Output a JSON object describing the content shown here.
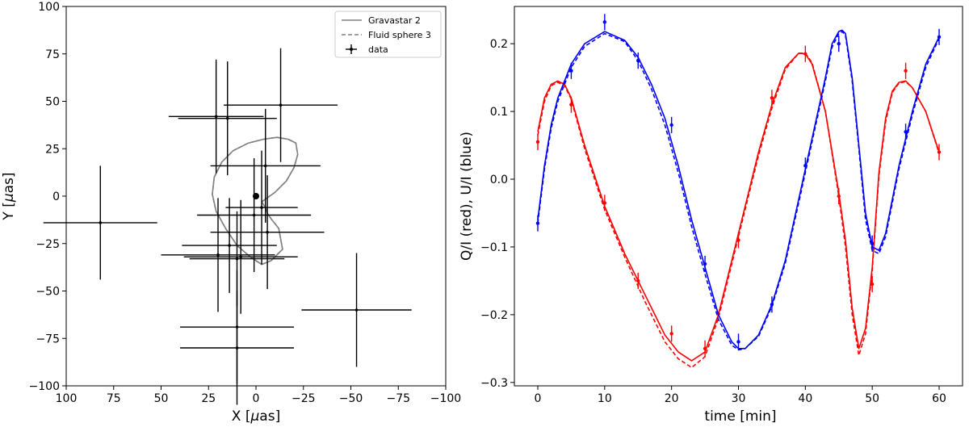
{
  "chart_data": [
    {
      "type": "scatter",
      "xlabel": "X [$\\mu$as]",
      "ylabel": "Y [$\\mu$as]",
      "xlim": [
        100,
        -100
      ],
      "ylim": [
        -100,
        100
      ],
      "xticks": [
        100,
        75,
        50,
        25,
        0,
        -25,
        -50,
        -75,
        -100
      ],
      "yticks": [
        -100,
        -75,
        -50,
        -25,
        0,
        25,
        50,
        75,
        100
      ],
      "legend_position": "top-right",
      "legend": [
        "Gravastar 2",
        "Fluid sphere 3",
        "data"
      ],
      "series": [
        {
          "name": "Gravastar 2",
          "style": "solid",
          "color": "#808080",
          "x": [
            -3,
            -10,
            -16,
            -20,
            -22,
            -21,
            -17,
            -11,
            -4,
            4,
            12,
            18,
            22,
            23,
            21,
            16,
            10,
            3,
            -3,
            -8,
            -14,
            -12,
            -8,
            -6,
            -5,
            -3
          ],
          "y": [
            -3,
            2,
            8,
            15,
            22,
            28,
            30,
            31,
            30,
            28,
            24,
            18,
            10,
            1,
            -8,
            -17,
            -26,
            -32,
            -36,
            -34,
            -28,
            -17,
            -12,
            -9,
            -6,
            -3
          ]
        },
        {
          "name": "Fluid sphere 3",
          "style": "dashed",
          "color": "#808080",
          "x": [
            -3,
            -10,
            -16,
            -20,
            -22,
            -21,
            -17,
            -11,
            -4,
            4,
            12,
            18,
            22,
            23,
            21,
            16,
            10,
            3,
            -3,
            -8,
            -14,
            -12,
            -8,
            -6,
            -5,
            -3
          ],
          "y": [
            -3,
            2,
            8,
            15,
            22,
            28,
            30,
            31,
            30,
            28,
            24,
            18,
            10,
            1,
            -8,
            -17,
            -26,
            -32,
            -36,
            -34,
            -28,
            -17,
            -12,
            -9,
            -6,
            -3
          ]
        },
        {
          "name": "data",
          "style": "errorbar",
          "color": "#000000",
          "points": [
            {
              "x": 82,
              "y": -14,
              "xerr": 30,
              "yerr": 30
            },
            {
              "x": -53,
              "y": -60,
              "xerr": 29,
              "yerr": 30
            },
            {
              "x": 21,
              "y": 42,
              "xerr": 25,
              "yerr": 30
            },
            {
              "x": 15,
              "y": 41,
              "xerr": 26,
              "yerr": 30
            },
            {
              "x": -13,
              "y": 48,
              "xerr": 30,
              "yerr": 30
            },
            {
              "x": -5,
              "y": 16,
              "xerr": 29,
              "yerr": 30
            },
            {
              "x": 1,
              "y": -10,
              "xerr": 30,
              "yerr": 30
            },
            {
              "x": -3,
              "y": -6,
              "xerr": 19,
              "yerr": 30
            },
            {
              "x": -6,
              "y": -19,
              "xerr": 30,
              "yerr": 30
            },
            {
              "x": 14,
              "y": -26,
              "xerr": 25,
              "yerr": 25
            },
            {
              "x": 20,
              "y": -31,
              "xerr": 30,
              "yerr": 30
            },
            {
              "x": 8,
              "y": -32,
              "xerr": 30,
              "yerr": 30
            },
            {
              "x": 10,
              "y": -33,
              "xerr": 25,
              "yerr": 25
            },
            {
              "x": 10,
              "y": -69,
              "xerr": 30,
              "yerr": 30
            },
            {
              "x": 10,
              "y": -80,
              "xerr": 30,
              "yerr": 30
            }
          ]
        }
      ],
      "center_point": {
        "x": 0,
        "y": 0
      }
    },
    {
      "type": "line",
      "xlabel": "time [min]",
      "ylabel": "Q/I (red), U/I (blue)",
      "xlim": [
        -3.5,
        63.5
      ],
      "ylim": [
        -0.305,
        0.255
      ],
      "xticks": [
        0,
        10,
        20,
        30,
        40,
        50,
        60
      ],
      "yticks": [
        -0.3,
        -0.2,
        -0.1,
        0.0,
        0.1,
        0.2
      ],
      "ytick_labels": [
        "−0.3",
        "−0.2",
        "−0.1",
        "0.0",
        "0.1",
        "0.2"
      ],
      "series": [
        {
          "color": "#ff0000",
          "style": "solid",
          "x": [
            0,
            1,
            2,
            3,
            4,
            5,
            7,
            10,
            13,
            16,
            19,
            21,
            23,
            25,
            27,
            29,
            31,
            33,
            35,
            37,
            39,
            40,
            41,
            43,
            45,
            46,
            47,
            48,
            49,
            50,
            51,
            52,
            53,
            54,
            55,
            56,
            58,
            60
          ],
          "y": [
            0.07,
            0.12,
            0.14,
            0.145,
            0.14,
            0.12,
            0.05,
            -0.04,
            -0.11,
            -0.17,
            -0.23,
            -0.255,
            -0.268,
            -0.255,
            -0.2,
            -0.12,
            -0.04,
            0.04,
            0.11,
            0.165,
            0.186,
            0.185,
            0.17,
            0.1,
            -0.02,
            -0.09,
            -0.19,
            -0.25,
            -0.22,
            -0.13,
            0.01,
            0.09,
            0.13,
            0.143,
            0.145,
            0.135,
            0.1,
            0.04
          ]
        },
        {
          "color": "#ff0000",
          "style": "dashed",
          "x": [
            0,
            1,
            2,
            3,
            4,
            5,
            7,
            10,
            13,
            16,
            19,
            21,
            23,
            25,
            27,
            29,
            31,
            33,
            35,
            37,
            39,
            40,
            41,
            43,
            45,
            46,
            47,
            48,
            49,
            50,
            51,
            52,
            53,
            54,
            55,
            56,
            58,
            60
          ],
          "y": [
            0.065,
            0.115,
            0.138,
            0.143,
            0.138,
            0.118,
            0.045,
            -0.045,
            -0.115,
            -0.18,
            -0.24,
            -0.265,
            -0.278,
            -0.262,
            -0.205,
            -0.125,
            -0.045,
            0.035,
            0.105,
            0.162,
            0.186,
            0.186,
            0.172,
            0.1,
            -0.025,
            -0.1,
            -0.2,
            -0.26,
            -0.228,
            -0.135,
            0.005,
            0.085,
            0.128,
            0.142,
            0.144,
            0.135,
            0.1,
            0.038
          ]
        },
        {
          "color": "#0000ff",
          "style": "solid",
          "x": [
            0,
            1,
            2,
            3,
            5,
            7,
            10,
            13,
            15,
            17,
            19,
            21,
            23,
            25,
            27,
            29,
            30,
            31,
            33,
            35,
            37,
            39,
            41,
            43,
            44,
            45,
            45.5,
            46,
            47,
            48,
            49,
            50,
            51,
            52,
            54,
            56,
            58,
            60
          ],
          "y": [
            -0.06,
            0.02,
            0.08,
            0.12,
            0.17,
            0.2,
            0.218,
            0.205,
            0.18,
            0.14,
            0.09,
            0.02,
            -0.06,
            -0.13,
            -0.2,
            -0.24,
            -0.25,
            -0.25,
            -0.23,
            -0.185,
            -0.12,
            -0.03,
            0.06,
            0.15,
            0.2,
            0.218,
            0.22,
            0.215,
            0.15,
            0.05,
            -0.05,
            -0.1,
            -0.105,
            -0.08,
            0.02,
            0.1,
            0.17,
            0.21
          ]
        },
        {
          "color": "#0000ff",
          "style": "dashed",
          "x": [
            0,
            1,
            2,
            3,
            5,
            7,
            10,
            13,
            15,
            17,
            19,
            21,
            23,
            25,
            27,
            29,
            30,
            31,
            33,
            35,
            37,
            39,
            41,
            43,
            44,
            45,
            45.5,
            46,
            47,
            48,
            49,
            50,
            51,
            52,
            54,
            56,
            58,
            60
          ],
          "y": [
            -0.065,
            0.015,
            0.075,
            0.115,
            0.165,
            0.196,
            0.215,
            0.203,
            0.175,
            0.133,
            0.08,
            0.01,
            -0.07,
            -0.14,
            -0.207,
            -0.245,
            -0.252,
            -0.25,
            -0.232,
            -0.188,
            -0.124,
            -0.035,
            0.055,
            0.145,
            0.195,
            0.215,
            0.218,
            0.212,
            0.145,
            0.045,
            -0.06,
            -0.105,
            -0.11,
            -0.085,
            0.015,
            0.095,
            0.165,
            0.208
          ]
        }
      ],
      "points": [
        {
          "x": 0,
          "y": 0.055,
          "err": 0.012,
          "color": "#ff0000"
        },
        {
          "x": 5,
          "y": 0.11,
          "err": 0.012,
          "color": "#ff0000"
        },
        {
          "x": 10,
          "y": -0.035,
          "err": 0.012,
          "color": "#ff0000"
        },
        {
          "x": 15,
          "y": -0.15,
          "err": 0.012,
          "color": "#ff0000"
        },
        {
          "x": 20,
          "y": -0.228,
          "err": 0.012,
          "color": "#ff0000"
        },
        {
          "x": 25,
          "y": -0.25,
          "err": 0.012,
          "color": "#ff0000"
        },
        {
          "x": 30,
          "y": -0.09,
          "err": 0.012,
          "color": "#ff0000"
        },
        {
          "x": 35,
          "y": 0.12,
          "err": 0.012,
          "color": "#ff0000"
        },
        {
          "x": 40,
          "y": 0.185,
          "err": 0.012,
          "color": "#ff0000"
        },
        {
          "x": 45,
          "y": -0.025,
          "err": 0.012,
          "color": "#ff0000"
        },
        {
          "x": 50,
          "y": -0.155,
          "err": 0.012,
          "color": "#ff0000"
        },
        {
          "x": 55,
          "y": 0.16,
          "err": 0.012,
          "color": "#ff0000"
        },
        {
          "x": 60,
          "y": 0.04,
          "err": 0.012,
          "color": "#ff0000"
        },
        {
          "x": 0,
          "y": -0.065,
          "err": 0.012,
          "color": "#0000ff"
        },
        {
          "x": 5,
          "y": 0.16,
          "err": 0.012,
          "color": "#0000ff"
        },
        {
          "x": 10,
          "y": 0.232,
          "err": 0.012,
          "color": "#0000ff"
        },
        {
          "x": 15,
          "y": 0.175,
          "err": 0.012,
          "color": "#0000ff"
        },
        {
          "x": 20,
          "y": 0.08,
          "err": 0.012,
          "color": "#0000ff"
        },
        {
          "x": 25,
          "y": -0.125,
          "err": 0.012,
          "color": "#0000ff"
        },
        {
          "x": 30,
          "y": -0.24,
          "err": 0.012,
          "color": "#0000ff"
        },
        {
          "x": 35,
          "y": -0.185,
          "err": 0.012,
          "color": "#0000ff"
        },
        {
          "x": 40,
          "y": 0.02,
          "err": 0.012,
          "color": "#0000ff"
        },
        {
          "x": 45,
          "y": 0.2,
          "err": 0.012,
          "color": "#0000ff"
        },
        {
          "x": 50,
          "y": -0.095,
          "err": 0.012,
          "color": "#0000ff"
        },
        {
          "x": 55,
          "y": 0.07,
          "err": 0.012,
          "color": "#0000ff"
        },
        {
          "x": 60,
          "y": 0.21,
          "err": 0.012,
          "color": "#0000ff"
        }
      ]
    }
  ]
}
